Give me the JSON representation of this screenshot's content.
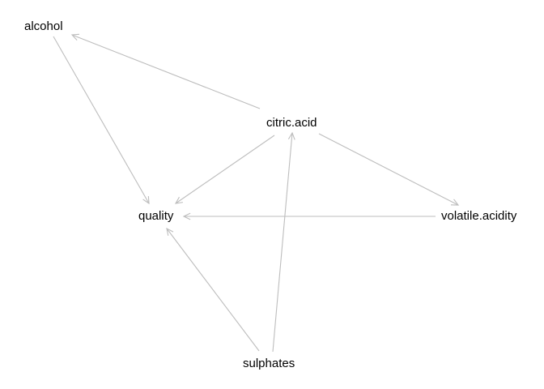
{
  "diagram": {
    "type": "directed-graph",
    "edge_color": "#bdbdbd",
    "label_color": "#000000",
    "nodes": [
      {
        "id": "alcohol",
        "label": "alcohol"
      },
      {
        "id": "citric_acid",
        "label": "citric.acid"
      },
      {
        "id": "quality",
        "label": "quality"
      },
      {
        "id": "volatile_acidity",
        "label": "volatile.acidity"
      },
      {
        "id": "sulphates",
        "label": "sulphates"
      }
    ],
    "edges": [
      {
        "from": "citric_acid",
        "to": "alcohol"
      },
      {
        "from": "alcohol",
        "to": "quality"
      },
      {
        "from": "citric_acid",
        "to": "quality"
      },
      {
        "from": "citric_acid",
        "to": "volatile_acidity"
      },
      {
        "from": "volatile_acidity",
        "to": "quality"
      },
      {
        "from": "sulphates",
        "to": "quality"
      },
      {
        "from": "sulphates",
        "to": "citric_acid"
      }
    ]
  }
}
